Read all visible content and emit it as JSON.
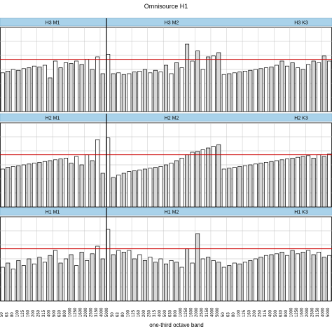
{
  "chart_data": {
    "type": "bar",
    "title": "Omnisource H1",
    "xlabel": "one-third octave band",
    "ylabel": "",
    "panel_rows": [
      {
        "labels": [
          "H3 M1",
          "H3 M2",
          "H3 K3"
        ]
      },
      {
        "labels": [
          "H2 M1",
          "H2 M2",
          "H2 K3"
        ]
      },
      {
        "labels": [
          "H1 M1",
          "H1 M2",
          "H1 K3"
        ]
      }
    ],
    "x_tick_labels": [
      "50",
      "63",
      "80",
      "100",
      "125",
      "160",
      "200",
      "250",
      "315",
      "400",
      "500",
      "630",
      "800",
      "1000",
      "1250",
      "1600",
      "2000",
      "2500",
      "3150",
      "4000",
      "5000",
      "50",
      "63",
      "80",
      "100",
      "125",
      "160",
      "200",
      "250",
      "315",
      "400",
      "500",
      "630",
      "800",
      "1000",
      "1250",
      "1600",
      "2000",
      "2500",
      "3150",
      "4000",
      "5000",
      "50",
      "63",
      "80",
      "100",
      "125",
      "160",
      "200",
      "250",
      "315",
      "400",
      "500",
      "630",
      "800",
      "1000",
      "1250",
      "1600",
      "2000",
      "2500",
      "3150",
      "4000",
      "5000"
    ],
    "ylim": [
      0,
      1
    ],
    "reference_line": 0.62,
    "grid": true,
    "colors": {
      "header": "#a9d2ea",
      "reference_line": "#cc0000",
      "bar_a": "#ffffff",
      "bar_b": "#d8d8d8",
      "bar_edge": "#000000",
      "grid": "#bbbbbb"
    },
    "series_rows": [
      [
        0.46,
        0.48,
        0.5,
        0.49,
        0.51,
        0.52,
        0.54,
        0.53,
        0.55,
        0.4,
        0.6,
        0.52,
        0.58,
        0.57,
        0.6,
        0.56,
        0.62,
        0.5,
        0.65,
        0.45,
        0.68,
        0.45,
        0.46,
        0.44,
        0.45,
        0.47,
        0.48,
        0.5,
        0.46,
        0.49,
        0.47,
        0.55,
        0.45,
        0.58,
        0.52,
        0.8,
        0.6,
        0.72,
        0.5,
        0.65,
        0.66,
        0.7,
        0.44,
        0.45,
        0.46,
        0.47,
        0.48,
        0.49,
        0.5,
        0.51,
        0.52,
        0.53,
        0.55,
        0.6,
        0.54,
        0.58,
        0.52,
        0.5,
        0.56,
        0.6,
        0.58,
        0.66,
        0.6
      ],
      [
        0.45,
        0.47,
        0.48,
        0.49,
        0.5,
        0.51,
        0.52,
        0.53,
        0.54,
        0.55,
        0.56,
        0.57,
        0.58,
        0.52,
        0.6,
        0.5,
        0.62,
        0.55,
        0.8,
        0.4,
        0.82,
        0.35,
        0.38,
        0.4,
        0.42,
        0.43,
        0.44,
        0.45,
        0.46,
        0.47,
        0.48,
        0.5,
        0.52,
        0.55,
        0.58,
        0.62,
        0.65,
        0.66,
        0.68,
        0.7,
        0.72,
        0.74,
        0.45,
        0.46,
        0.47,
        0.48,
        0.49,
        0.5,
        0.51,
        0.52,
        0.53,
        0.54,
        0.55,
        0.56,
        0.57,
        0.58,
        0.59,
        0.6,
        0.61,
        0.58,
        0.62,
        0.6,
        0.63
      ],
      [
        0.4,
        0.45,
        0.38,
        0.48,
        0.42,
        0.5,
        0.44,
        0.52,
        0.46,
        0.54,
        0.6,
        0.45,
        0.5,
        0.55,
        0.42,
        0.58,
        0.48,
        0.56,
        0.65,
        0.5,
        0.85,
        0.55,
        0.6,
        0.58,
        0.6,
        0.5,
        0.55,
        0.48,
        0.52,
        0.46,
        0.5,
        0.44,
        0.48,
        0.46,
        0.4,
        0.62,
        0.45,
        0.8,
        0.5,
        0.52,
        0.48,
        0.46,
        0.4,
        0.42,
        0.45,
        0.44,
        0.46,
        0.48,
        0.5,
        0.52,
        0.54,
        0.55,
        0.56,
        0.58,
        0.54,
        0.6,
        0.56,
        0.58,
        0.6,
        0.55,
        0.58,
        0.52,
        0.54
      ]
    ]
  }
}
